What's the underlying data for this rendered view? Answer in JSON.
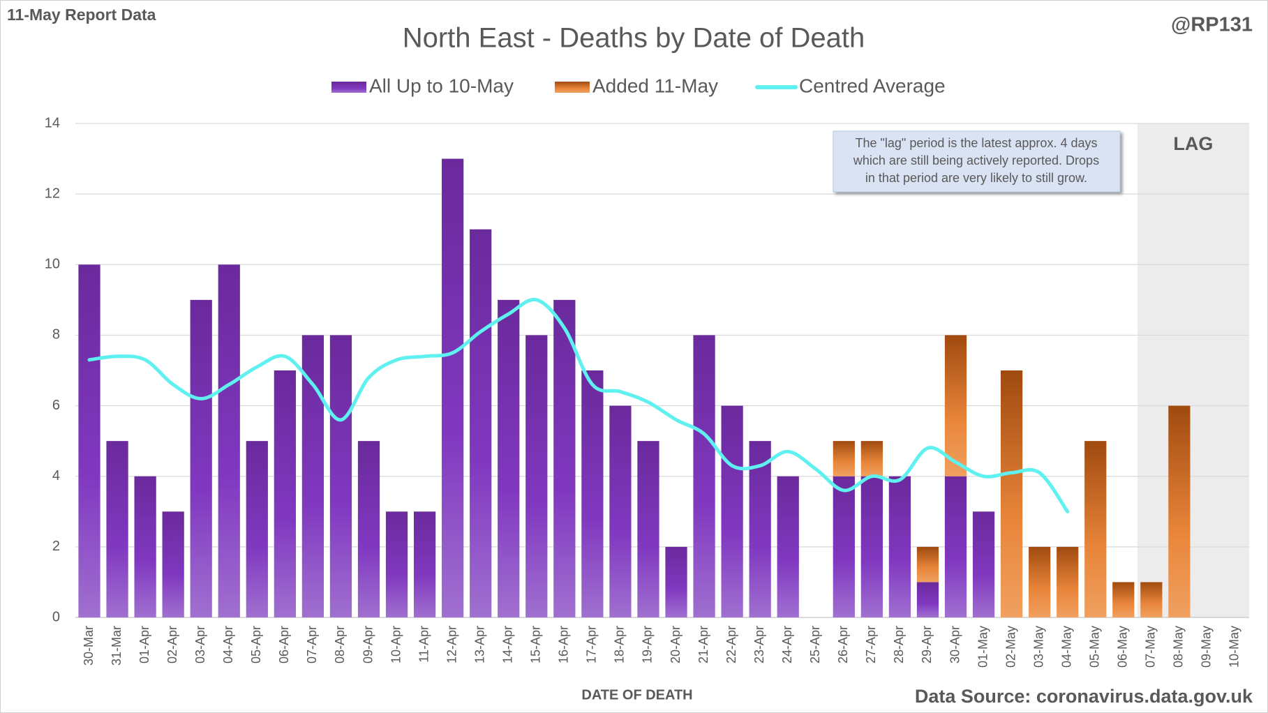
{
  "chart_data": {
    "type": "bar",
    "title": "North East - Deaths by Date of Death",
    "corner_left": "11-May Report Data",
    "corner_right": "@RP131",
    "x_label": "DATE OF DEATH",
    "source": "Data Source: coronavirus.data.gov.uk",
    "annotation": [
      "The \"lag\" period is the latest approx. 4 days",
      "which are still being actively reported.  Drops",
      "in that period are very likely to still grow."
    ],
    "lag": {
      "label": "LAG",
      "from": "07-May",
      "to": "10-May"
    },
    "categories": [
      "30-Mar",
      "31-Mar",
      "01-Apr",
      "02-Apr",
      "03-Apr",
      "04-Apr",
      "05-Apr",
      "06-Apr",
      "07-Apr",
      "08-Apr",
      "09-Apr",
      "10-Apr",
      "11-Apr",
      "12-Apr",
      "13-Apr",
      "14-Apr",
      "15-Apr",
      "16-Apr",
      "17-Apr",
      "18-Apr",
      "19-Apr",
      "20-Apr",
      "21-Apr",
      "22-Apr",
      "23-Apr",
      "24-Apr",
      "25-Apr",
      "26-Apr",
      "27-Apr",
      "28-Apr",
      "29-Apr",
      "30-Apr",
      "01-May",
      "02-May",
      "03-May",
      "04-May",
      "05-May",
      "06-May",
      "07-May",
      "08-May",
      "09-May",
      "10-May"
    ],
    "series": [
      {
        "name": "All Up to 10-May",
        "type": "bar",
        "color": "#7030a0",
        "values": [
          10,
          5,
          4,
          3,
          9,
          10,
          5,
          7,
          8,
          8,
          5,
          3,
          3,
          13,
          11,
          9,
          8,
          9,
          7,
          6,
          5,
          2,
          8,
          6,
          5,
          4,
          0,
          4,
          4,
          4,
          1,
          4,
          3,
          0,
          0,
          0,
          0,
          0,
          0,
          0,
          0,
          0
        ]
      },
      {
        "name": "Added 11-May",
        "type": "bar",
        "color": "#e07020",
        "values": [
          0,
          0,
          0,
          0,
          0,
          0,
          0,
          0,
          0,
          0,
          0,
          0,
          0,
          0,
          0,
          0,
          0,
          0,
          0,
          0,
          0,
          0,
          0,
          0,
          0,
          0,
          0,
          1,
          1,
          0,
          1,
          4,
          0,
          7,
          2,
          2,
          5,
          1,
          1,
          6,
          0,
          0
        ]
      },
      {
        "name": "Centred Average",
        "type": "line",
        "color": "#5ff0f0",
        "values": [
          7.3,
          7.4,
          7.3,
          6.6,
          6.2,
          6.6,
          7.1,
          7.4,
          6.6,
          5.6,
          6.8,
          7.3,
          7.4,
          7.5,
          8.1,
          8.6,
          9.0,
          8.2,
          6.6,
          6.4,
          6.1,
          5.6,
          5.2,
          4.3,
          4.3,
          4.7,
          4.2,
          3.6,
          4.0,
          3.9,
          4.8,
          4.4,
          4.0,
          4.1,
          4.1,
          3.0,
          null,
          null,
          null,
          null,
          null,
          null
        ]
      }
    ],
    "stacked": true,
    "ylim": [
      0,
      14
    ],
    "yticks": [
      0,
      2,
      4,
      6,
      8,
      10,
      12,
      14
    ],
    "grid": true
  }
}
